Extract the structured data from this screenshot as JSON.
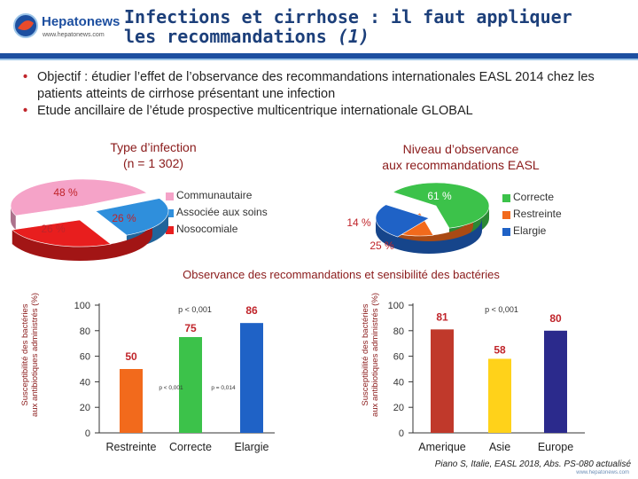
{
  "header": {
    "logo_name": "Hepatonews",
    "logo_url": "www.hepatonews.com",
    "title_line1": "Infections et cirrhose : il faut appliquer",
    "title_line2": "les recommandations",
    "title_suffix": "(1)"
  },
  "bullets": [
    "Objectif : étudier l’effet de l’observance des recommandations internationales EASL 2014 chez les patients atteints de cirrhose présentant une infection",
    "Etude ancillaire de l’étude prospective multicentrique internationale GLOBAL"
  ],
  "pie1": {
    "title_line1": "Type d’infection",
    "title_line2": "(n = 1 302)",
    "legend": [
      "Communautaire",
      "Associée aux soins",
      "Nosocomiale"
    ]
  },
  "pie2": {
    "title_line1": "Niveau d’observance",
    "title_line2": "aux recommandations EASL",
    "legend": [
      "Correcte",
      "Restreinte",
      "Elargie"
    ]
  },
  "section_title": "Observance des recommandations et sensibilité des bactéries",
  "ylabel_line1": "Susceptibilité des bactéries",
  "ylabel_line2": "aux antibiotiques administrés (%)",
  "bar1": {
    "p1": "p < 0,001",
    "p2": "p < 0,001",
    "p3": "p = 0,014"
  },
  "bar2": {
    "p1": "p < 0,001"
  },
  "reference": "Piano S, Italie, EASL 2018, Abs. PS-080 actualisé",
  "site": "www.hepatonews.com",
  "colors": {
    "pink": "#f5a3c8",
    "red": "#e81e1e",
    "lightblue": "#2f8fdc",
    "green": "#3cc24a",
    "orange": "#f26a1c",
    "blue": "#1f62c6",
    "darkred": "#c0392b",
    "navy": "#2b2a8c",
    "yellow": "#ffd21a"
  },
  "chart_data": [
    {
      "type": "pie",
      "title": "Type d’infection (n = 1 302)",
      "labels": [
        "Communautaire",
        "Associée aux soins",
        "Nosocomiale"
      ],
      "values": [
        48,
        26,
        26
      ],
      "value_labels": [
        "48 %",
        "26 %",
        "26 %"
      ]
    },
    {
      "type": "pie",
      "title": "Niveau d’observance aux recommandations EASL",
      "labels": [
        "Correcte",
        "Restreinte",
        "Elargie"
      ],
      "values": [
        61,
        14,
        25
      ],
      "value_labels": [
        "61 %",
        "14 %",
        "25 %"
      ]
    },
    {
      "type": "bar",
      "categories": [
        "Restreinte",
        "Correcte",
        "Elargie"
      ],
      "values": [
        50,
        75,
        86
      ],
      "ylim": [
        0,
        100
      ],
      "yticks": [
        0,
        20,
        40,
        60,
        80,
        100
      ],
      "ylabel": "Susceptibilité des bactéries aux antibiotiques administrés (%)"
    },
    {
      "type": "bar",
      "categories": [
        "Amerique",
        "Asie",
        "Europe"
      ],
      "values": [
        81,
        58,
        80
      ],
      "ylim": [
        0,
        100
      ],
      "yticks": [
        0,
        20,
        40,
        60,
        80,
        100
      ],
      "ylabel": "Susceptibilité des bactéries aux antibiotiques administrés (%)"
    }
  ]
}
